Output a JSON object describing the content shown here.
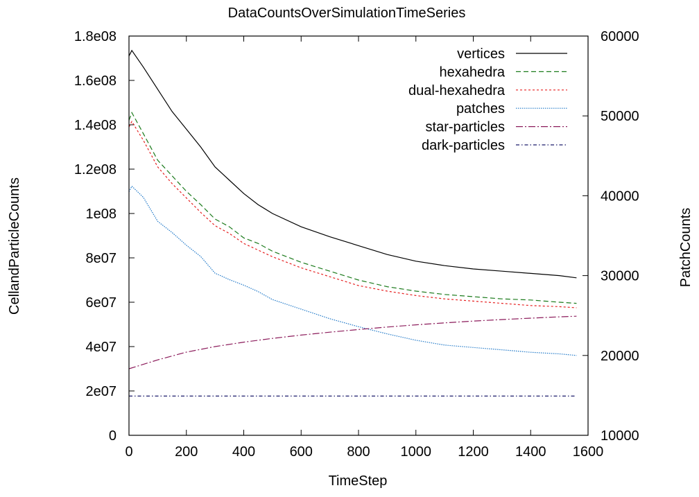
{
  "chart_data": {
    "type": "line",
    "title": "DataCountsOverSimulationTimeSeries",
    "xlabel": "TimeStep",
    "ylabel": "CellandParticleCounts",
    "y2label": "PatchCounts",
    "xlim": [
      0,
      1600
    ],
    "ylim": [
      0,
      180000000
    ],
    "y2lim": [
      10000,
      60000
    ],
    "xticks": [
      0,
      200,
      400,
      600,
      800,
      1000,
      1200,
      1400,
      1600
    ],
    "xtick_labels": [
      "0",
      "200",
      "400",
      "600",
      "800",
      "1000",
      "1200",
      "1400",
      "1600"
    ],
    "yticks": [
      0,
      20000000,
      40000000,
      60000000,
      80000000,
      100000000,
      120000000,
      140000000,
      160000000,
      180000000
    ],
    "ytick_labels": [
      "0",
      "2e07",
      "4e07",
      "6e07",
      "8e07",
      "1e08",
      "1.2e08",
      "1.4e08",
      "1.6e08",
      "1.8e08"
    ],
    "y2ticks": [
      10000,
      20000,
      30000,
      40000,
      50000,
      60000
    ],
    "y2tick_labels": [
      "10000",
      "20000",
      "30000",
      "40000",
      "50000",
      "60000"
    ],
    "grid": false,
    "legend_position": "top-right",
    "series": [
      {
        "name": "vertices",
        "color": "#000000",
        "dash": "",
        "axis": "left",
        "x": [
          0,
          10,
          50,
          100,
          150,
          200,
          250,
          300,
          350,
          400,
          450,
          500,
          600,
          700,
          800,
          900,
          1000,
          1100,
          1200,
          1300,
          1400,
          1500,
          1560
        ],
        "y": [
          171000000,
          173500000,
          166000000,
          156000000,
          146000000,
          138000000,
          130000000,
          121000000,
          115000000,
          109000000,
          104000000,
          100000000,
          94000000,
          89500000,
          85500000,
          81500000,
          78500000,
          76500000,
          75000000,
          74000000,
          73000000,
          72000000,
          71000000
        ]
      },
      {
        "name": "hexahedra",
        "color": "#1a7a1a",
        "dash": "7,4",
        "axis": "left",
        "x": [
          0,
          10,
          50,
          100,
          150,
          200,
          250,
          300,
          350,
          400,
          450,
          500,
          600,
          700,
          800,
          900,
          1000,
          1100,
          1200,
          1300,
          1400,
          1500,
          1560
        ],
        "y": [
          142000000,
          145500000,
          136000000,
          124000000,
          117000000,
          110000000,
          104000000,
          97500000,
          94000000,
          89000000,
          86500000,
          83000000,
          78000000,
          74000000,
          70000000,
          67000000,
          65000000,
          63500000,
          62500000,
          61500000,
          61000000,
          60000000,
          59500000
        ]
      },
      {
        "name": "dual-hexahedra",
        "color": "#e62020",
        "dash": "3,3",
        "axis": "left",
        "x": [
          0,
          10,
          50,
          100,
          150,
          200,
          250,
          300,
          350,
          400,
          450,
          500,
          600,
          700,
          800,
          900,
          1000,
          1100,
          1200,
          1300,
          1400,
          1500,
          1560
        ],
        "y": [
          139000000,
          141500000,
          133000000,
          121000000,
          113500000,
          107000000,
          100500000,
          94500000,
          91000000,
          86500000,
          83500000,
          80500000,
          75500000,
          71500000,
          67500000,
          65000000,
          63000000,
          61500000,
          60500000,
          59500000,
          58500000,
          58000000,
          57500000
        ]
      },
      {
        "name": "patches",
        "color": "#1f78c8",
        "dash": "1.5,1.5",
        "axis": "right",
        "x": [
          0,
          10,
          50,
          100,
          150,
          200,
          250,
          300,
          350,
          400,
          450,
          500,
          600,
          700,
          800,
          900,
          1000,
          1100,
          1200,
          1300,
          1400,
          1500,
          1560
        ],
        "y": [
          40500,
          41200,
          39800,
          36800,
          35400,
          33800,
          32400,
          30300,
          29500,
          28800,
          28000,
          27000,
          25800,
          24600,
          23600,
          22700,
          21900,
          21300,
          21000,
          20700,
          20400,
          20200,
          20000
        ]
      },
      {
        "name": "star-particles",
        "color": "#8b1a5a",
        "dash": "10,3,2,3",
        "axis": "left",
        "x": [
          0,
          100,
          200,
          300,
          400,
          500,
          600,
          700,
          800,
          900,
          1000,
          1100,
          1200,
          1300,
          1400,
          1500,
          1560
        ],
        "y": [
          30000000,
          34000000,
          37500000,
          40000000,
          42000000,
          43700000,
          45200000,
          46500000,
          47700000,
          48800000,
          49800000,
          50700000,
          51500000,
          52200000,
          52800000,
          53400000,
          53700000
        ]
      },
      {
        "name": "dark-particles",
        "color": "#1a1a6a",
        "dash": "5,3,1.5,3",
        "axis": "left",
        "x": [
          0,
          1560
        ],
        "y": [
          17700000,
          17700000
        ]
      }
    ]
  }
}
